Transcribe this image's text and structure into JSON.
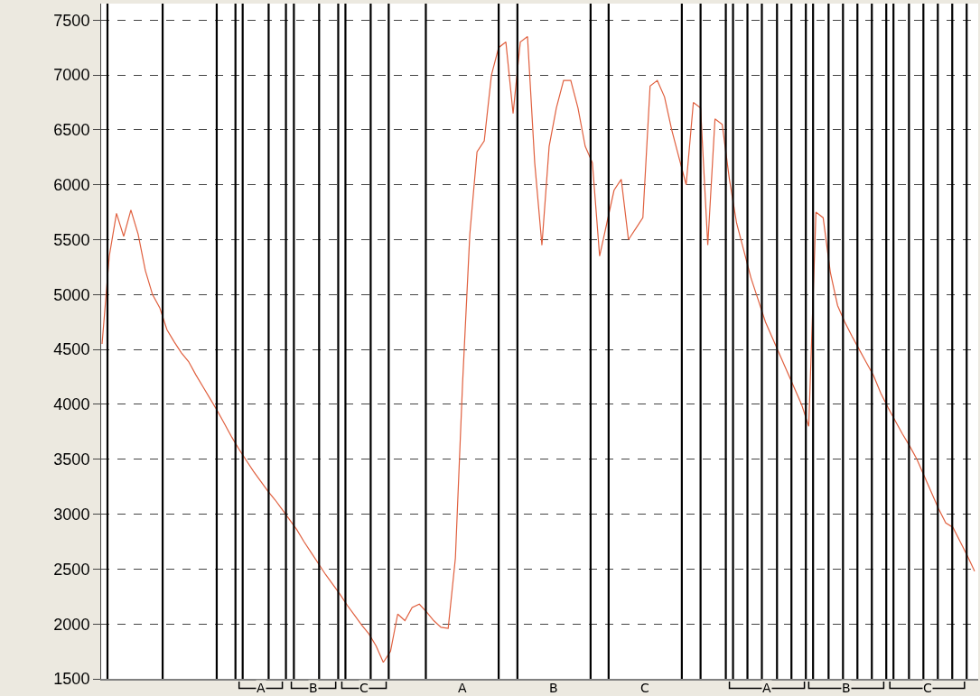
{
  "chart_data": {
    "type": "line",
    "categories": [
      null,
      null,
      null,
      null,
      null,
      null,
      null,
      null,
      null,
      null,
      null,
      null,
      null,
      null,
      null,
      null,
      null,
      null,
      null,
      null,
      null,
      null,
      null,
      null,
      null,
      null,
      null,
      null,
      null,
      null,
      null,
      null,
      null,
      null,
      null,
      null,
      null,
      null,
      null,
      null,
      null,
      null,
      null,
      null,
      null,
      null,
      null,
      null,
      null,
      null,
      null,
      null,
      null,
      null,
      null,
      null,
      null,
      null,
      null,
      null,
      null,
      null,
      null,
      null,
      null,
      null,
      null,
      null,
      null,
      null,
      null,
      null,
      null,
      null,
      null,
      null,
      null,
      null,
      null,
      null,
      null,
      null,
      null,
      null,
      null,
      null,
      null,
      null,
      null,
      null,
      null,
      null,
      null,
      null,
      null,
      null,
      null,
      null,
      null,
      null,
      null,
      null,
      null,
      null,
      null,
      null,
      null,
      null,
      null,
      null,
      null,
      null,
      null,
      null,
      null,
      null,
      null,
      null,
      null,
      null,
      null,
      null
    ],
    "series": [
      {
        "color": "#e0603f",
        "values": [
          4550,
          5350,
          5740,
          5530,
          5770,
          5550,
          5220,
          5000,
          4880,
          4680,
          4570,
          4470,
          4390,
          4270,
          4160,
          4050,
          3940,
          3820,
          3700,
          3590,
          3490,
          3390,
          3300,
          3210,
          3130,
          3040,
          2950,
          2860,
          2750,
          2650,
          2550,
          2450,
          2360,
          2270,
          2170,
          2080,
          1990,
          1910,
          1800,
          1650,
          1750,
          2090,
          2030,
          2150,
          2180,
          2110,
          2030,
          1970,
          1960,
          2600,
          4200,
          5550,
          6300,
          6400,
          7000,
          7250,
          7300,
          6650,
          7300,
          7350,
          6200,
          5450,
          6350,
          6700,
          6950,
          6950,
          6700,
          6350,
          6200,
          5350,
          5650,
          5950,
          6050,
          5500,
          5600,
          5700,
          6900,
          6950,
          6800,
          6500,
          6250,
          6000,
          6750,
          6700,
          5450,
          6600,
          6550,
          6050,
          5650,
          5400,
          5150,
          4950,
          4750,
          4600,
          4450,
          4300,
          4150,
          4000,
          3800,
          5750,
          5700,
          5200,
          4900,
          4750,
          4620,
          4500,
          4380,
          4260,
          4100,
          3970,
          3850,
          3730,
          3620,
          3500,
          3350,
          3200,
          3050,
          2920,
          2880,
          2750,
          2620,
          2480
        ]
      }
    ],
    "ylim": [
      1500,
      7650
    ],
    "yticks": [
      1500,
      2000,
      2500,
      3000,
      3500,
      4000,
      4500,
      5000,
      5500,
      6000,
      6500,
      7000,
      7500
    ],
    "grid": "y",
    "legend": false,
    "marker": "none",
    "line_style": "solid",
    "annotations": [
      "A",
      "B",
      "C",
      "A",
      "B",
      "C",
      "A",
      "B",
      "C"
    ]
  }
}
